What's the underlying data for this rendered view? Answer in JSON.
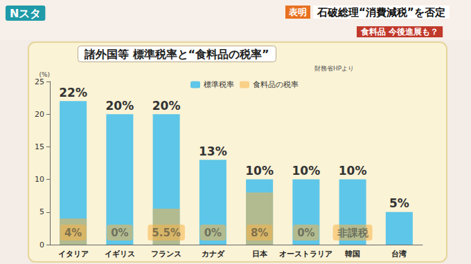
{
  "header": {
    "program": "Nスタ",
    "tag": "表明",
    "headline": "石破総理“消費減税”を否定",
    "subheadline": "食料品 今後進展も？"
  },
  "chart_data": {
    "type": "bar",
    "title": "諸外国等 標準税率と“食料品の税率”",
    "source": "財務省HPより",
    "y_label": "(%)",
    "categories": [
      "イタリア",
      "イギリス",
      "フランス",
      "カナダ",
      "日本",
      "オーストラリア",
      "韓国",
      "台湾"
    ],
    "series": [
      {
        "name": "標準税率",
        "color": "#5ec6e8",
        "values": [
          22,
          20,
          20,
          13,
          10,
          10,
          10,
          5
        ],
        "value_labels": [
          "22%",
          "20%",
          "20%",
          "13%",
          "10%",
          "10%",
          "10%",
          "5%"
        ]
      },
      {
        "name": "食料品の税率",
        "color": "#f7b247",
        "values": [
          4,
          0,
          5.5,
          0,
          8,
          0,
          0,
          null
        ],
        "value_labels": [
          "4%",
          "0%",
          "5.5%",
          "0%",
          "8%",
          "0%",
          "非課税",
          null
        ]
      }
    ],
    "ylim": [
      0,
      25
    ],
    "yticks": [
      0,
      5,
      10,
      15,
      20,
      25
    ],
    "grid": false,
    "data_labels": true,
    "legend": "top"
  }
}
